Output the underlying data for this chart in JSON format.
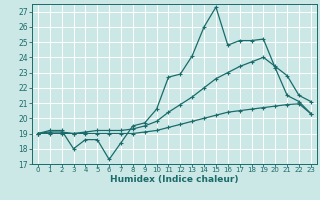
{
  "xlabel": "Humidex (Indice chaleur)",
  "bg_color": "#cce8e6",
  "grid_color": "#b8d8d6",
  "line_color": "#1a6b6b",
  "xlim": [
    -0.5,
    23.5
  ],
  "ylim": [
    17,
    27.5
  ],
  "yticks": [
    17,
    18,
    19,
    20,
    21,
    22,
    23,
    24,
    25,
    26,
    27
  ],
  "xticks": [
    0,
    1,
    2,
    3,
    4,
    5,
    6,
    7,
    8,
    9,
    10,
    11,
    12,
    13,
    14,
    15,
    16,
    17,
    18,
    19,
    20,
    21,
    22,
    23
  ],
  "line1_x": [
    0,
    1,
    2,
    3,
    4,
    5,
    6,
    7,
    8,
    9,
    10,
    11,
    12,
    13,
    14,
    15,
    16,
    17,
    18,
    19,
    20,
    21,
    22,
    23
  ],
  "line1_y": [
    19,
    19.2,
    19.2,
    18.0,
    18.6,
    18.6,
    17.3,
    18.4,
    19.5,
    19.7,
    20.6,
    22.7,
    22.9,
    24.1,
    26.0,
    27.3,
    24.8,
    25.1,
    25.1,
    25.2,
    23.3,
    21.5,
    21.1,
    20.3
  ],
  "line2_x": [
    0,
    1,
    2,
    3,
    4,
    5,
    6,
    7,
    8,
    9,
    10,
    11,
    12,
    13,
    14,
    15,
    16,
    17,
    18,
    19,
    20,
    21,
    22,
    23
  ],
  "line2_y": [
    19,
    19.1,
    19.1,
    19.0,
    19.1,
    19.2,
    19.2,
    19.2,
    19.3,
    19.5,
    19.8,
    20.4,
    20.9,
    21.4,
    22.0,
    22.6,
    23.0,
    23.4,
    23.7,
    24.0,
    23.4,
    22.8,
    21.5,
    21.1
  ],
  "line3_x": [
    0,
    1,
    2,
    3,
    4,
    5,
    6,
    7,
    8,
    9,
    10,
    11,
    12,
    13,
    14,
    15,
    16,
    17,
    18,
    19,
    20,
    21,
    22,
    23
  ],
  "line3_y": [
    19,
    19.0,
    19.0,
    19.0,
    19.0,
    19.0,
    19.0,
    19.0,
    19.0,
    19.1,
    19.2,
    19.4,
    19.6,
    19.8,
    20.0,
    20.2,
    20.4,
    20.5,
    20.6,
    20.7,
    20.8,
    20.9,
    20.95,
    20.3
  ]
}
